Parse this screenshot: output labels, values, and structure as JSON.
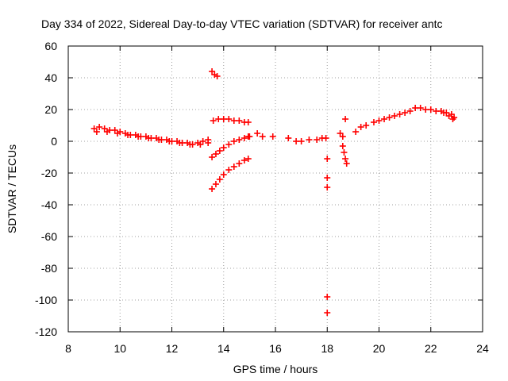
{
  "chart_data": {
    "type": "scatter",
    "title": "Day 334 of 2022, Sidereal Day-to-day VTEC variation (SDTVAR) for receiver antc",
    "xlabel": "GPS time / hours",
    "ylabel": "SDTVAR / TECUs",
    "xlim": [
      8,
      24
    ],
    "ylim": [
      -120,
      60
    ],
    "xticks": [
      8,
      10,
      12,
      14,
      16,
      18,
      20,
      22,
      24
    ],
    "yticks": [
      60,
      40,
      20,
      0,
      -20,
      -40,
      -60,
      -80,
      -100,
      -120
    ],
    "grid": true,
    "marker": "+",
    "colors": {
      "points": "#ff0000",
      "grid": "#a0a0a0",
      "frame": "#000000"
    },
    "series": [
      {
        "name": "SDTVAR",
        "x": [
          9.0,
          9.2,
          9.4,
          9.6,
          9.8,
          10.0,
          10.2,
          10.4,
          10.6,
          10.8,
          11.0,
          11.2,
          11.4,
          11.6,
          11.8,
          12.0,
          12.2,
          12.4,
          12.6,
          12.8,
          13.0,
          13.2,
          13.4,
          9.1,
          9.5,
          9.9,
          10.3,
          10.7,
          11.1,
          11.5,
          11.9,
          12.3,
          12.7,
          13.1,
          13.4,
          13.55,
          13.65,
          13.75,
          13.6,
          13.8,
          14.0,
          14.2,
          14.4,
          14.6,
          14.8,
          14.95,
          13.55,
          13.7,
          13.85,
          14.0,
          14.2,
          14.4,
          14.6,
          14.8,
          14.95,
          13.55,
          13.7,
          13.85,
          14.0,
          14.2,
          14.4,
          14.6,
          14.8,
          14.95,
          15.0,
          15.3,
          15.5,
          15.9,
          16.5,
          16.8,
          17.0,
          17.3,
          17.6,
          17.8,
          17.95,
          18.0,
          18.0,
          18.0,
          18.0,
          18.0,
          18.5,
          18.6,
          18.7,
          18.6,
          18.65,
          18.7,
          18.75,
          19.1,
          19.3,
          19.5,
          19.8,
          20.0,
          20.2,
          20.4,
          20.6,
          20.8,
          21.0,
          21.2,
          21.4,
          21.6,
          21.8,
          22.0,
          22.2,
          22.4,
          22.6,
          22.8,
          22.9,
          22.5,
          22.7,
          22.85
        ],
        "y": [
          8,
          9,
          8,
          7,
          7,
          6,
          5,
          4,
          4,
          3,
          3,
          2,
          2,
          1,
          1,
          0,
          0,
          -1,
          -1,
          -2,
          -1,
          0,
          1,
          6,
          6,
          5,
          4,
          3,
          2,
          1,
          0,
          -1,
          -2,
          -2,
          -1,
          44,
          42,
          41,
          13,
          14,
          14,
          14,
          13,
          13,
          12,
          12,
          -10,
          -8,
          -6,
          -4,
          -2,
          0,
          1,
          2,
          3,
          -30,
          -27,
          -24,
          -21,
          -18,
          -16,
          -14,
          -12,
          -11,
          3,
          5,
          3,
          3,
          2,
          0,
          0,
          1,
          1,
          2,
          2,
          -11,
          -23,
          -29,
          -98,
          -108,
          5,
          3,
          14,
          -3,
          -7,
          -11,
          -14,
          6,
          9,
          10,
          12,
          13,
          14,
          15,
          16,
          17,
          18,
          19,
          21,
          21,
          20,
          20,
          19,
          19,
          18,
          17,
          15,
          18,
          16,
          14
        ]
      }
    ]
  }
}
